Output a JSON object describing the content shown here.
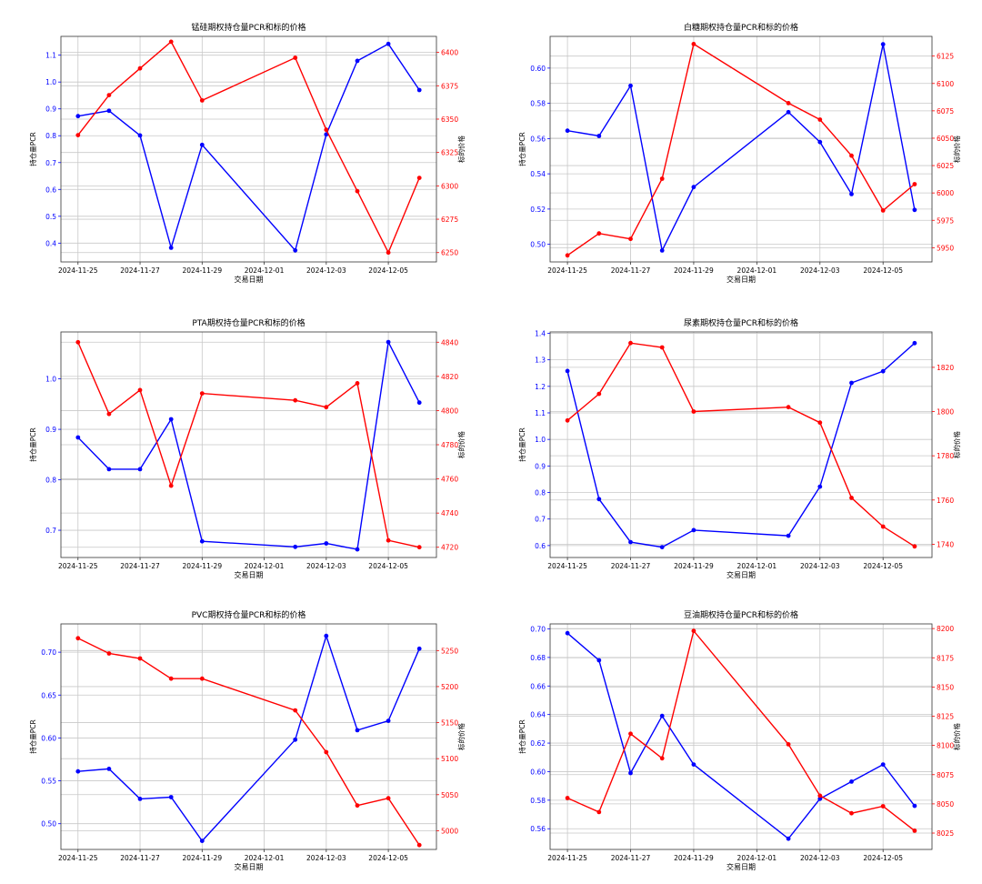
{
  "colors": {
    "pcr": "#0000ff",
    "price": "#ff0000",
    "grid": "#c8c8c8",
    "axis": "#333333"
  },
  "chart_data": [
    {
      "type": "line",
      "title": "锰硅期权持仓量PCR和标的价格",
      "xlabel": "交易日期",
      "ylabel_left": "持仓量PCR",
      "ylabel_right": "标的价格",
      "x": [
        "2024-11-25",
        "2024-11-26",
        "2024-11-27",
        "2024-11-28",
        "2024-11-29",
        "2024-12-02",
        "2024-12-03",
        "2024-12-04",
        "2024-12-05",
        "2024-12-06"
      ],
      "x_ticks": [
        "2024-11-25",
        "2024-11-27",
        "2024-11-29",
        "2024-12-01",
        "2024-12-03",
        "2024-12-05"
      ],
      "left_ticks": [
        "0.4",
        "0.5",
        "0.6",
        "0.7",
        "0.8",
        "0.9",
        "1.0",
        "1.1"
      ],
      "right_ticks": [
        "6250",
        "6275",
        "6300",
        "6325",
        "6350",
        "6375",
        "6400"
      ],
      "ylim_left": [
        0.33,
        1.17
      ],
      "ylim_right": [
        6243,
        6412
      ],
      "series": [
        {
          "name": "持仓量PCR",
          "axis": "left",
          "values": [
            0.873,
            0.893,
            0.801,
            0.383,
            0.766,
            0.373,
            0.805,
            1.079,
            1.142,
            0.97
          ]
        },
        {
          "name": "标的价格",
          "axis": "right",
          "values": [
            6338,
            6368,
            6388,
            6408,
            6364,
            6396,
            6342,
            6296,
            6250,
            6306
          ]
        }
      ]
    },
    {
      "type": "line",
      "title": "白糖期权持仓量PCR和标的价格",
      "xlabel": "交易日期",
      "ylabel_left": "持仓量PCR",
      "ylabel_right": "标的价格",
      "x": [
        "2024-11-25",
        "2024-11-26",
        "2024-11-27",
        "2024-11-28",
        "2024-11-29",
        "2024-12-02",
        "2024-12-03",
        "2024-12-04",
        "2024-12-05",
        "2024-12-06"
      ],
      "x_ticks": [
        "2024-11-25",
        "2024-11-27",
        "2024-11-29",
        "2024-12-01",
        "2024-12-03",
        "2024-12-05"
      ],
      "left_ticks": [
        "0.50",
        "0.52",
        "0.54",
        "0.56",
        "0.58",
        "0.60"
      ],
      "right_ticks": [
        "5950",
        "5975",
        "6000",
        "6025",
        "6050",
        "6075",
        "6100",
        "6125"
      ],
      "ylim_left": [
        0.49,
        0.618
      ],
      "ylim_right": [
        5937,
        6143
      ],
      "series": [
        {
          "name": "持仓量PCR",
          "axis": "left",
          "values": [
            0.5645,
            0.5615,
            0.59,
            0.4965,
            0.5325,
            0.575,
            0.558,
            0.5285,
            0.6135,
            0.5195
          ]
        },
        {
          "name": "标的价格",
          "axis": "right",
          "values": [
            5943,
            5963,
            5958,
            6013,
            6136,
            6082,
            6067,
            6034,
            5984,
            6008
          ]
        }
      ]
    },
    {
      "type": "line",
      "title": "PTA期权持仓量PCR和标的价格",
      "xlabel": "交易日期",
      "ylabel_left": "持仓量PCR",
      "ylabel_right": "标的价格",
      "x": [
        "2024-11-25",
        "2024-11-26",
        "2024-11-27",
        "2024-11-28",
        "2024-11-29",
        "2024-12-02",
        "2024-12-03",
        "2024-12-04",
        "2024-12-05",
        "2024-12-06"
      ],
      "x_ticks": [
        "2024-11-25",
        "2024-11-27",
        "2024-11-29",
        "2024-12-01",
        "2024-12-03",
        "2024-12-05"
      ],
      "left_ticks": [
        "0.7",
        "0.8",
        "0.9",
        "1.0"
      ],
      "right_ticks": [
        "4720",
        "4740",
        "4760",
        "4780",
        "4800",
        "4820",
        "4840"
      ],
      "ylim_left": [
        0.646,
        1.093
      ],
      "ylim_right": [
        4714,
        4846
      ],
      "series": [
        {
          "name": "持仓量PCR",
          "axis": "left",
          "values": [
            0.884,
            0.821,
            0.821,
            0.92,
            0.678,
            0.667,
            0.674,
            0.662,
            1.073,
            0.953
          ]
        },
        {
          "name": "标的价格",
          "axis": "right",
          "values": [
            4840,
            4798,
            4812,
            4756,
            4810,
            4806,
            4802,
            4816,
            4724,
            4720
          ]
        }
      ]
    },
    {
      "type": "line",
      "title": "尿素期权持仓量PCR和标的价格",
      "xlabel": "交易日期",
      "ylabel_left": "持仓量PCR",
      "ylabel_right": "标的价格",
      "x": [
        "2024-11-25",
        "2024-11-26",
        "2024-11-27",
        "2024-11-28",
        "2024-11-29",
        "2024-12-02",
        "2024-12-03",
        "2024-12-04",
        "2024-12-05",
        "2024-12-06"
      ],
      "x_ticks": [
        "2024-11-25",
        "2024-11-27",
        "2024-11-29",
        "2024-12-01",
        "2024-12-03",
        "2024-12-05"
      ],
      "left_ticks": [
        "0.6",
        "0.7",
        "0.8",
        "0.9",
        "1.0",
        "1.1",
        "1.2",
        "1.3",
        "1.4"
      ],
      "right_ticks": [
        "1740",
        "1760",
        "1780",
        "1800",
        "1820"
      ],
      "ylim_left": [
        0.555,
        1.405
      ],
      "ylim_right": [
        1734,
        1836
      ],
      "series": [
        {
          "name": "持仓量PCR",
          "axis": "left",
          "values": [
            1.258,
            0.775,
            0.613,
            0.594,
            0.658,
            0.637,
            0.822,
            1.213,
            1.257,
            1.363
          ]
        },
        {
          "name": "标的价格",
          "axis": "right",
          "values": [
            1796,
            1808,
            1831,
            1829,
            1800,
            1802,
            1795,
            1761,
            1748,
            1739
          ]
        }
      ]
    },
    {
      "type": "line",
      "title": "PVC期权持仓量PCR和标的价格",
      "xlabel": "交易日期",
      "ylabel_left": "持仓量PCR",
      "ylabel_right": "标的价格",
      "x": [
        "2024-11-25",
        "2024-11-26",
        "2024-11-27",
        "2024-11-28",
        "2024-11-29",
        "2024-12-02",
        "2024-12-03",
        "2024-12-04",
        "2024-12-05",
        "2024-12-06"
      ],
      "x_ticks": [
        "2024-11-25",
        "2024-11-27",
        "2024-11-29",
        "2024-12-01",
        "2024-12-03",
        "2024-12-05"
      ],
      "left_ticks": [
        "0.50",
        "0.55",
        "0.60",
        "0.65",
        "0.70"
      ],
      "right_ticks": [
        "5000",
        "5050",
        "5100",
        "5150",
        "5200",
        "5250"
      ],
      "ylim_left": [
        0.47,
        0.733
      ],
      "ylim_right": [
        4974,
        5287
      ],
      "series": [
        {
          "name": "持仓量PCR",
          "axis": "left",
          "values": [
            0.561,
            0.564,
            0.529,
            0.531,
            0.48,
            0.598,
            0.719,
            0.609,
            0.62,
            0.704
          ]
        },
        {
          "name": "标的价格",
          "axis": "right",
          "values": [
            5267,
            5246,
            5239,
            5211,
            5211,
            5167,
            5109,
            5035,
            5045,
            4980
          ]
        }
      ]
    },
    {
      "type": "line",
      "title": "豆油期权持仓量PCR和标的价格",
      "xlabel": "交易日期",
      "ylabel_left": "持仓量PCR",
      "ylabel_right": "标的价格",
      "x": [
        "2024-11-25",
        "2024-11-26",
        "2024-11-27",
        "2024-11-28",
        "2024-11-29",
        "2024-12-02",
        "2024-12-03",
        "2024-12-04",
        "2024-12-05",
        "2024-12-06"
      ],
      "x_ticks": [
        "2024-11-25",
        "2024-11-27",
        "2024-11-29",
        "2024-12-01",
        "2024-12-03",
        "2024-12-05"
      ],
      "left_ticks": [
        "0.56",
        "0.58",
        "0.60",
        "0.62",
        "0.64",
        "0.66",
        "0.68",
        "0.70"
      ],
      "right_ticks": [
        "8025",
        "8050",
        "8075",
        "8100",
        "8125",
        "8150",
        "8175",
        "8200"
      ],
      "ylim_left": [
        0.5455,
        0.7035
      ],
      "ylim_right": [
        8011,
        8204
      ],
      "series": [
        {
          "name": "持仓量PCR",
          "axis": "left",
          "values": [
            0.697,
            0.678,
            0.599,
            0.639,
            0.605,
            0.553,
            0.581,
            0.593,
            0.605,
            0.576
          ]
        },
        {
          "name": "标的价格",
          "axis": "right",
          "values": [
            8055,
            8043,
            8110,
            8089,
            8198,
            8101,
            8057,
            8042,
            8048,
            8027
          ]
        }
      ]
    }
  ]
}
